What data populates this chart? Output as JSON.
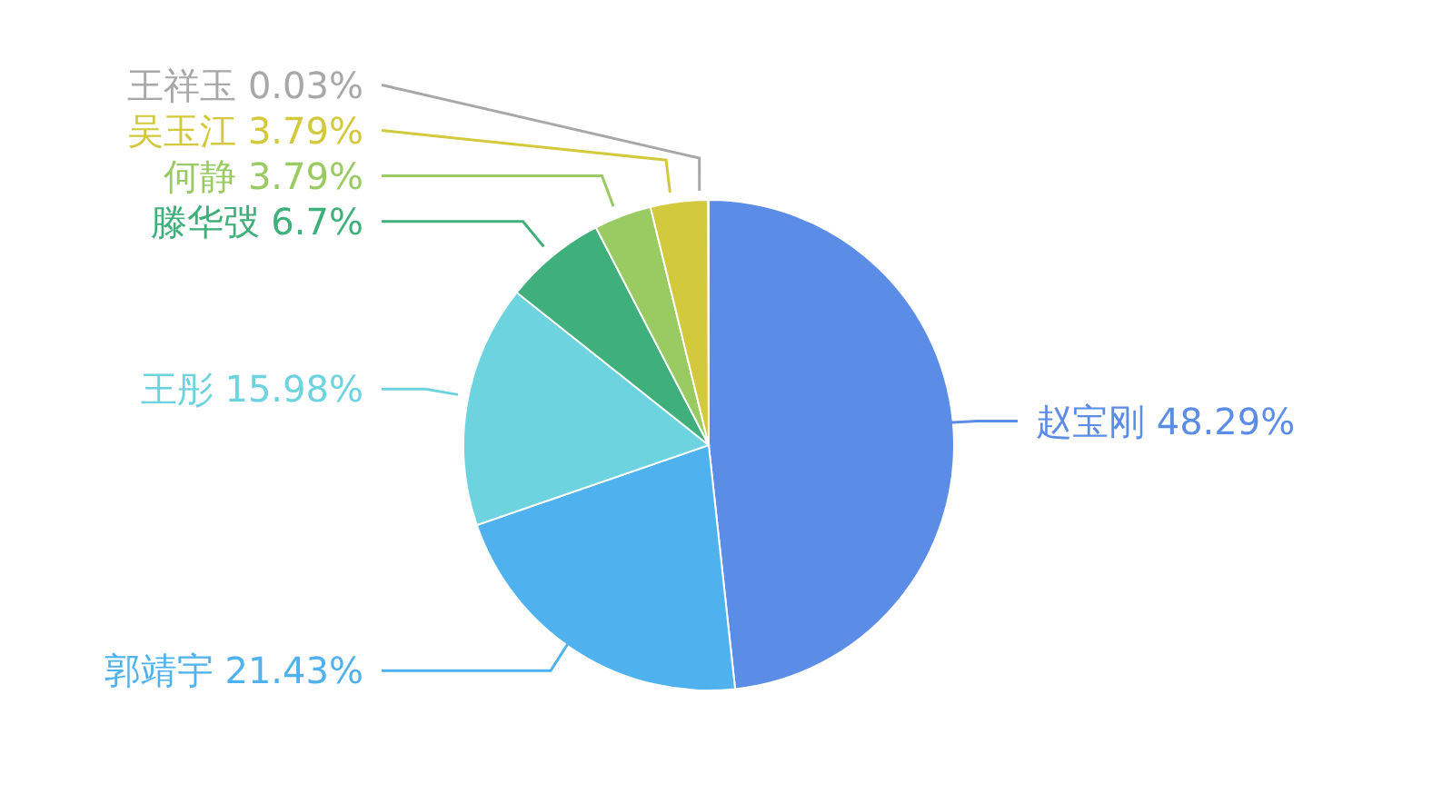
{
  "chart_data": {
    "type": "pie",
    "categories": [
      "赵宝刚",
      "郭靖宇",
      "王彤",
      "滕华弢",
      "何静",
      "吴玉江",
      "王祥玉"
    ],
    "values": [
      48.29,
      21.43,
      15.98,
      6.7,
      3.79,
      3.79,
      0.03
    ],
    "value_labels": [
      "48.29%",
      "21.43%",
      "15.98%",
      "6.7%",
      "3.79%",
      "3.79%",
      "0.03%"
    ],
    "colors": [
      "#5b8ce6",
      "#4fb2ef",
      "#6dd3df",
      "#3fb07c",
      "#9acb63",
      "#d3c93c",
      "#a8a8a8"
    ]
  }
}
